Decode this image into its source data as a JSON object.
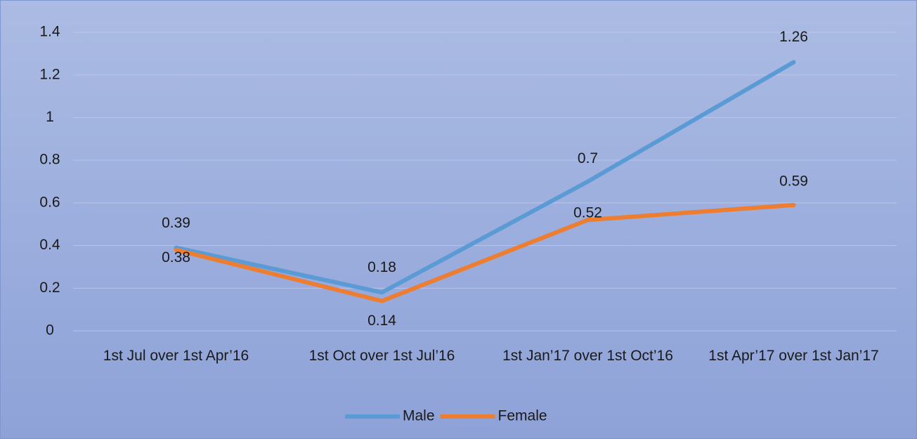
{
  "chart_data": {
    "type": "line",
    "categories": [
      "1st Jul over 1st Apr’16",
      "1st Oct over 1st Jul’16",
      "1st Jan’17 over 1st Oct’16",
      "1st Apr’17 over 1st Jan’17"
    ],
    "series": [
      {
        "name": "Male",
        "color": "#5b9bd5",
        "values": [
          0.39,
          0.18,
          0.7,
          1.26
        ]
      },
      {
        "name": "Female",
        "color": "#ed7d31",
        "values": [
          0.38,
          0.14,
          0.52,
          0.59
        ]
      }
    ],
    "ylim": [
      0,
      1.4
    ],
    "yticks": [
      0,
      0.2,
      0.4,
      0.6,
      0.8,
      1,
      1.2,
      1.4
    ],
    "grid": true,
    "legend": "bottom"
  }
}
